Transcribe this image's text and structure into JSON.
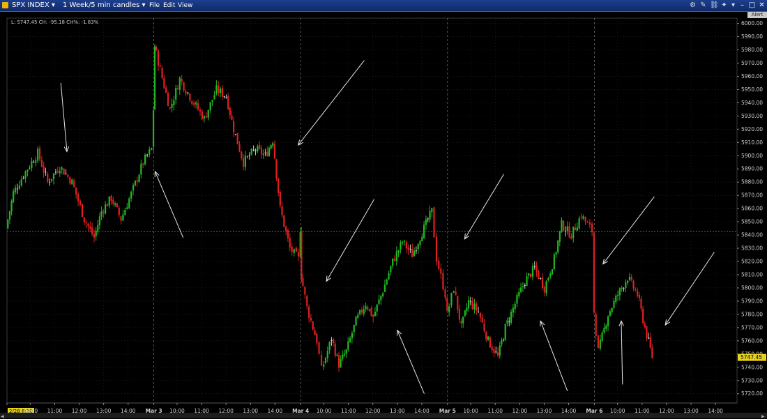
{
  "window": {
    "security": "SPX INDEX",
    "period": "1 Week/5 min candles",
    "menu": [
      "File",
      "Edit",
      "View"
    ],
    "toolbar_icons": [
      "gear-icon",
      "tools-icon",
      "link-icon",
      "pin-icon",
      "dock-icon"
    ],
    "controls": [
      "minimize-icon",
      "maximize-icon",
      "close-icon"
    ],
    "alert_label": "Alert"
  },
  "readout": {
    "text": "L: 5747.45 CH: -95.18 CH%: -1.63%"
  },
  "chart_data": {
    "type": "candlestick",
    "last_price": "5747.45",
    "reference_price": 5842.6,
    "ylim": [
      5713,
      6004
    ],
    "y_ticks": [
      "5720.00",
      "5730.00",
      "5740.00",
      "5750.00",
      "5760.00",
      "5770.00",
      "5780.00",
      "5790.00",
      "5800.00",
      "5810.00",
      "5820.00",
      "5830.00",
      "5840.00",
      "5850.00",
      "5860.00",
      "5870.00",
      "5880.00",
      "5890.00",
      "5900.00",
      "5910.00",
      "5920.00",
      "5930.00",
      "5940.00",
      "5950.00",
      "5960.00",
      "5970.00",
      "5980.00",
      "5990.00",
      "6000.00"
    ],
    "x_ticks": [
      {
        "label": "2/28 8:30",
        "pos": 0.0,
        "highlight": true
      },
      {
        "label": "10:00",
        "pos": 0.95
      },
      {
        "label": "11:00",
        "pos": 1.95
      },
      {
        "label": "12:00",
        "pos": 2.95
      },
      {
        "label": "13:00",
        "pos": 3.95
      },
      {
        "label": "14:00",
        "pos": 4.95
      },
      {
        "label": "Mar 3",
        "pos": 6.0,
        "bold": true
      },
      {
        "label": "10:00",
        "pos": 6.95
      },
      {
        "label": "11:00",
        "pos": 7.95
      },
      {
        "label": "12:00",
        "pos": 8.95
      },
      {
        "label": "13:00",
        "pos": 9.95
      },
      {
        "label": "14:00",
        "pos": 10.95
      },
      {
        "label": "Mar 4",
        "pos": 12.0,
        "bold": true
      },
      {
        "label": "10:00",
        "pos": 12.95
      },
      {
        "label": "11:00",
        "pos": 13.95
      },
      {
        "label": "12:00",
        "pos": 14.95
      },
      {
        "label": "13:00",
        "pos": 15.95
      },
      {
        "label": "14:00",
        "pos": 16.95
      },
      {
        "label": "Mar 5",
        "pos": 18.0,
        "bold": true
      },
      {
        "label": "10:00",
        "pos": 18.95
      },
      {
        "label": "11:00",
        "pos": 19.95
      },
      {
        "label": "12:00",
        "pos": 20.95
      },
      {
        "label": "13:00",
        "pos": 21.95
      },
      {
        "label": "14:00",
        "pos": 22.95
      },
      {
        "label": "Mar 6",
        "pos": 24.0,
        "bold": true
      },
      {
        "label": "10:00",
        "pos": 24.95
      },
      {
        "label": "11:00",
        "pos": 25.95
      },
      {
        "label": "12:00",
        "pos": 26.95
      },
      {
        "label": "13:00",
        "pos": 27.95
      },
      {
        "label": "14:00",
        "pos": 28.95
      }
    ],
    "session_breaks": [
      6.0,
      12.0,
      18.0,
      24.0
    ],
    "path": [
      [
        0.0,
        5845
      ],
      [
        0.3,
        5872
      ],
      [
        0.8,
        5888
      ],
      [
        1.3,
        5902
      ],
      [
        1.7,
        5880
      ],
      [
        2.2,
        5892
      ],
      [
        2.7,
        5880
      ],
      [
        3.2,
        5852
      ],
      [
        3.6,
        5838
      ],
      [
        3.9,
        5858
      ],
      [
        4.3,
        5868
      ],
      [
        4.7,
        5852
      ],
      [
        5.2,
        5875
      ],
      [
        5.6,
        5895
      ],
      [
        5.95,
        5905
      ],
      [
        6.02,
        5935
      ],
      [
        6.06,
        5983
      ],
      [
        6.3,
        5965
      ],
      [
        6.7,
        5935
      ],
      [
        7.1,
        5958
      ],
      [
        7.6,
        5942
      ],
      [
        8.1,
        5928
      ],
      [
        8.6,
        5950
      ],
      [
        9.0,
        5945
      ],
      [
        9.3,
        5920
      ],
      [
        9.7,
        5895
      ],
      [
        10.2,
        5905
      ],
      [
        10.6,
        5900
      ],
      [
        10.9,
        5912
      ],
      [
        11.2,
        5860
      ],
      [
        11.6,
        5830
      ],
      [
        11.95,
        5822
      ],
      [
        12.02,
        5845
      ],
      [
        12.05,
        5810
      ],
      [
        12.3,
        5785
      ],
      [
        12.7,
        5760
      ],
      [
        12.9,
        5738
      ],
      [
        13.3,
        5762
      ],
      [
        13.6,
        5742
      ],
      [
        13.9,
        5752
      ],
      [
        14.3,
        5775
      ],
      [
        14.7,
        5788
      ],
      [
        15.0,
        5778
      ],
      [
        15.4,
        5798
      ],
      [
        15.8,
        5820
      ],
      [
        16.2,
        5835
      ],
      [
        16.6,
        5825
      ],
      [
        17.0,
        5842
      ],
      [
        17.4,
        5858
      ],
      [
        17.6,
        5822
      ],
      [
        17.95,
        5795
      ],
      [
        18.02,
        5780
      ],
      [
        18.3,
        5800
      ],
      [
        18.6,
        5770
      ],
      [
        18.9,
        5790
      ],
      [
        19.3,
        5782
      ],
      [
        19.7,
        5760
      ],
      [
        20.1,
        5748
      ],
      [
        20.4,
        5770
      ],
      [
        20.8,
        5788
      ],
      [
        21.2,
        5805
      ],
      [
        21.6,
        5815
      ],
      [
        22.0,
        5800
      ],
      [
        22.4,
        5822
      ],
      [
        22.7,
        5848
      ],
      [
        23.1,
        5840
      ],
      [
        23.5,
        5855
      ],
      [
        23.95,
        5843
      ],
      [
        24.02,
        5782
      ],
      [
        24.2,
        5752
      ],
      [
        24.6,
        5780
      ],
      [
        25.0,
        5795
      ],
      [
        25.4,
        5808
      ],
      [
        25.8,
        5795
      ],
      [
        26.1,
        5770
      ],
      [
        26.4,
        5748
      ]
    ],
    "annotation_arrows": [
      {
        "from": [
          2.2,
          5955
        ],
        "to": [
          2.45,
          5903
        ]
      },
      {
        "from": [
          7.2,
          5838
        ],
        "to": [
          6.05,
          5888
        ]
      },
      {
        "from": [
          14.6,
          5972
        ],
        "to": [
          11.9,
          5908
        ]
      },
      {
        "from": [
          15.0,
          5867
        ],
        "to": [
          13.05,
          5805
        ]
      },
      {
        "from": [
          17.05,
          5720
        ],
        "to": [
          15.95,
          5768
        ]
      },
      {
        "from": [
          20.3,
          5886
        ],
        "to": [
          18.7,
          5837
        ]
      },
      {
        "from": [
          22.9,
          5722
        ],
        "to": [
          21.8,
          5775
        ]
      },
      {
        "from": [
          26.45,
          5869
        ],
        "to": [
          24.35,
          5818
        ]
      },
      {
        "from": [
          25.15,
          5727
        ],
        "to": [
          25.1,
          5775
        ]
      },
      {
        "from": [
          28.9,
          5827
        ],
        "to": [
          26.9,
          5772
        ]
      }
    ],
    "colors": {
      "up": "#22b822",
      "down": "#e02020",
      "flat": "#cfcfcf",
      "arrow": "#e6e6e6",
      "grid": "#2e2e2e",
      "last_tag": "#e6d21c"
    }
  }
}
